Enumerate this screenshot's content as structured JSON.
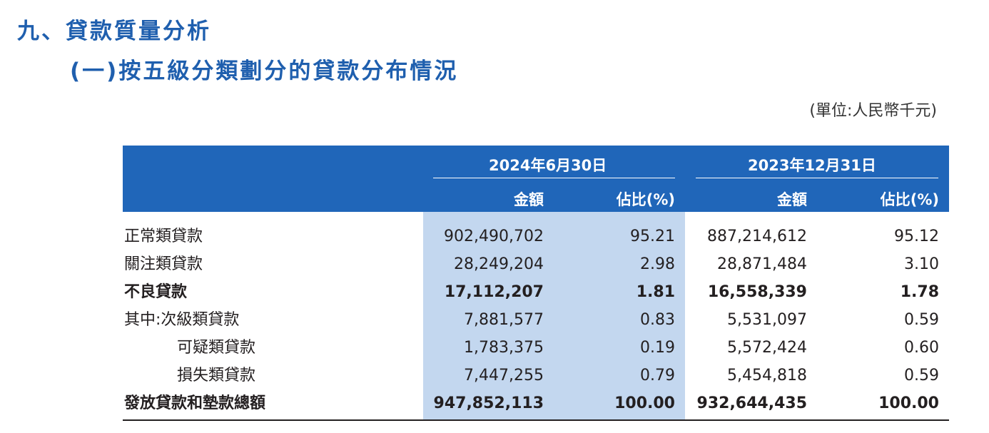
{
  "section_title": "九、貸款質量分析",
  "subsection_title": "(一)按五級分類劃分的貸款分布情況",
  "unit_note": "(單位:人民幣千元)",
  "table": {
    "period_1": "2024年6月30日",
    "period_2": "2023年12月31日",
    "col_amount": "金額",
    "col_share": "佔比(%)",
    "rows": [
      {
        "label": "正常類貸款",
        "a1": "902,490,702",
        "p1": "95.21",
        "a2": "887,214,612",
        "p2": "95.12"
      },
      {
        "label": "關注類貸款",
        "a1": "28,249,204",
        "p1": "2.98",
        "a2": "28,871,484",
        "p2": "3.10"
      },
      {
        "label": "不良貸款",
        "a1": "17,112,207",
        "p1": "1.81",
        "a2": "16,558,339",
        "p2": "1.78"
      },
      {
        "label": "其中:次級類貸款",
        "a1": "7,881,577",
        "p1": "0.83",
        "a2": "5,531,097",
        "p2": "0.59"
      },
      {
        "label": "可疑類貸款",
        "a1": "1,783,375",
        "p1": "0.19",
        "a2": "5,572,424",
        "p2": "0.60"
      },
      {
        "label": "損失類貸款",
        "a1": "7,447,255",
        "p1": "0.79",
        "a2": "5,454,818",
        "p2": "0.59"
      },
      {
        "label": "發放貸款和墊款總額",
        "a1": "947,852,113",
        "p1": "100.00",
        "a2": "932,644,435",
        "p2": "100.00"
      }
    ]
  }
}
